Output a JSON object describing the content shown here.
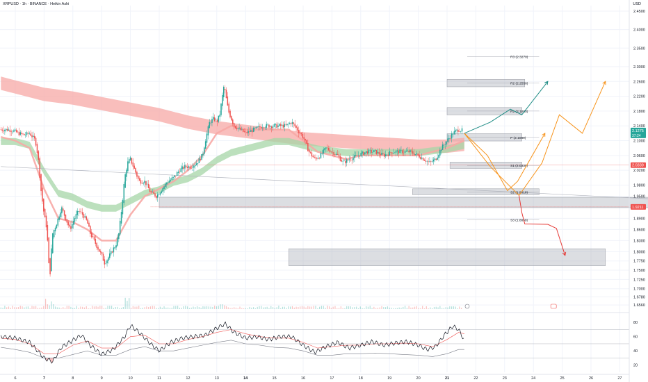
{
  "header": {
    "title": "XRPUSD · 1h · BINANCE · Heikin Ashi",
    "currency": "USD"
  },
  "colors": {
    "up": "#26a69a",
    "down": "#ef5350",
    "ribbon_red": "#f7a8a5",
    "ribbon_green": "#a5d6a7",
    "zone": "#b2b5be",
    "rsi_line": "#131722",
    "rsi_ma": "#ef5350",
    "rsi_alt": "#787b86",
    "path_teal": "#1e8c85",
    "path_orange": "#f7931a",
    "path_red": "#e53935"
  },
  "chart_data": [
    {
      "type": "line",
      "title": "XRPUSD · 1h · BINANCE · Heikin Ashi",
      "candle_style": "heikin-ashi",
      "y_axis_label": "USD",
      "y_ticks": [
        "2.4500",
        "2.4000",
        "2.3500",
        "2.3000",
        "2.2600",
        "2.2200",
        "2.1800",
        "2.1400",
        "2.1000",
        "2.0600",
        "2.0200",
        "1.9800",
        "1.9500",
        "1.8900",
        "1.8600",
        "1.8300",
        "1.8000",
        "1.7750",
        "1.7500",
        "1.7250",
        "1.7000",
        "1.6780",
        "1.6560"
      ],
      "x_ticks": [
        "6",
        "7",
        "8",
        "9",
        "10",
        "11",
        "12",
        "13",
        "14",
        "15",
        "16",
        "17",
        "18",
        "19",
        "20",
        "21",
        "22",
        "23",
        "24",
        "25",
        "26",
        "27"
      ],
      "price_labels": {
        "last": "2.1275",
        "sub_last": "37:24",
        "line_2": "2.0339",
        "line_3": "1.9211"
      },
      "pivots": [
        {
          "label": "R3 (2.3270)",
          "value": 2.327
        },
        {
          "label": "R2 (2.2556)",
          "value": 2.2556
        },
        {
          "label": "R1 (2.1800)",
          "value": 2.18
        },
        {
          "label": "P (2.1089)",
          "value": 2.1089
        },
        {
          "label": "S1 (2.0330)",
          "value": 2.033
        },
        {
          "label": "S2 (1.9616)",
          "value": 1.9616
        },
        {
          "label": "S3 (1.8859)",
          "value": 1.8859
        }
      ],
      "zones": [
        {
          "from": 2.2455,
          "to": 2.2655,
          "x0": 21,
          "x1": 23.7
        },
        {
          "from": 2.1695,
          "to": 2.1895,
          "x0": 21,
          "x1": 23.6
        },
        {
          "from": 2.099,
          "to": 2.119,
          "x0": 21,
          "x1": 23.6
        },
        {
          "from": 2.025,
          "to": 2.042,
          "x0": 21.1,
          "x1": 23.6
        },
        {
          "from": 1.954,
          "to": 1.97,
          "x0": 19.8,
          "x1": 24.2
        },
        {
          "from": 1.919,
          "to": 1.947,
          "x0": 11,
          "x1": 28
        },
        {
          "from": 1.762,
          "to": 1.808,
          "x0": 15.5,
          "x1": 26.5
        }
      ],
      "close_series": [
        [
          5.5,
          2.13
        ],
        [
          5.7,
          2.13
        ],
        [
          5.9,
          2.128
        ],
        [
          6.1,
          2.12
        ],
        [
          6.3,
          2.115
        ],
        [
          6.5,
          2.12
        ],
        [
          6.7,
          2.1
        ],
        [
          6.8,
          2.05
        ],
        [
          6.9,
          1.96
        ],
        [
          7.0,
          1.9
        ],
        [
          7.1,
          1.86
        ],
        [
          7.15,
          1.78
        ],
        [
          7.2,
          1.73
        ],
        [
          7.25,
          1.8
        ],
        [
          7.3,
          1.85
        ],
        [
          7.45,
          1.88
        ],
        [
          7.6,
          1.92
        ],
        [
          7.75,
          1.89
        ],
        [
          7.9,
          1.86
        ],
        [
          8.05,
          1.89
        ],
        [
          8.2,
          1.91
        ],
        [
          8.35,
          1.9
        ],
        [
          8.5,
          1.88
        ],
        [
          8.6,
          1.85
        ],
        [
          8.8,
          1.82
        ],
        [
          9.0,
          1.79
        ],
        [
          9.1,
          1.77
        ],
        [
          9.2,
          1.78
        ],
        [
          9.35,
          1.8
        ],
        [
          9.5,
          1.82
        ],
        [
          9.6,
          1.85
        ],
        [
          9.7,
          1.92
        ],
        [
          9.8,
          2.0
        ],
        [
          9.9,
          2.04
        ],
        [
          10.0,
          2.05
        ],
        [
          10.15,
          2.02
        ],
        [
          10.3,
          1.99
        ],
        [
          10.5,
          1.99
        ],
        [
          10.7,
          1.96
        ],
        [
          10.9,
          1.95
        ],
        [
          11.1,
          1.97
        ],
        [
          11.3,
          1.99
        ],
        [
          11.5,
          2.0
        ],
        [
          11.7,
          2.02
        ],
        [
          11.9,
          2.03
        ],
        [
          12.1,
          2.03
        ],
        [
          12.3,
          2.04
        ],
        [
          12.5,
          2.06
        ],
        [
          12.6,
          2.1
        ],
        [
          12.75,
          2.15
        ],
        [
          12.9,
          2.16
        ],
        [
          13.0,
          2.15
        ],
        [
          13.1,
          2.17
        ],
        [
          13.25,
          2.25
        ],
        [
          13.4,
          2.18
        ],
        [
          13.6,
          2.14
        ],
        [
          13.8,
          2.13
        ],
        [
          14.0,
          2.12
        ],
        [
          14.3,
          2.13
        ],
        [
          14.6,
          2.14
        ],
        [
          14.9,
          2.14
        ],
        [
          15.2,
          2.14
        ],
        [
          15.4,
          2.14
        ],
        [
          15.6,
          2.15
        ],
        [
          15.8,
          2.13
        ],
        [
          16.0,
          2.11
        ],
        [
          16.2,
          2.07
        ],
        [
          16.4,
          2.05
        ],
        [
          16.6,
          2.06
        ],
        [
          16.8,
          2.08
        ],
        [
          17.0,
          2.07
        ],
        [
          17.2,
          2.06
        ],
        [
          17.4,
          2.04
        ],
        [
          17.6,
          2.05
        ],
        [
          17.9,
          2.06
        ],
        [
          18.2,
          2.07
        ],
        [
          18.5,
          2.07
        ],
        [
          18.8,
          2.06
        ],
        [
          19.1,
          2.07
        ],
        [
          19.4,
          2.07
        ],
        [
          19.7,
          2.07
        ],
        [
          20.0,
          2.06
        ],
        [
          20.2,
          2.05
        ],
        [
          20.4,
          2.04
        ],
        [
          20.6,
          2.05
        ],
        [
          20.8,
          2.08
        ],
        [
          21.0,
          2.1
        ],
        [
          21.2,
          2.12
        ],
        [
          21.4,
          2.13
        ],
        [
          21.55,
          2.127
        ]
      ],
      "ribbon_center": [
        [
          5.5,
          2.255
        ],
        [
          6,
          2.245
        ],
        [
          7,
          2.225
        ],
        [
          8,
          2.215
        ],
        [
          9,
          2.2
        ],
        [
          10,
          2.185
        ],
        [
          11,
          2.17
        ],
        [
          12,
          2.15
        ],
        [
          13,
          2.135
        ],
        [
          14,
          2.125
        ],
        [
          15,
          2.115
        ],
        [
          16,
          2.105
        ],
        [
          17,
          2.1
        ],
        [
          18,
          2.095
        ],
        [
          19,
          2.09
        ],
        [
          20,
          2.085
        ],
        [
          21,
          2.085
        ],
        [
          21.6,
          2.09
        ]
      ],
      "ma_green": [
        [
          5.5,
          2.1
        ],
        [
          6,
          2.1
        ],
        [
          6.5,
          2.09
        ],
        [
          7,
          2.02
        ],
        [
          7.5,
          1.96
        ],
        [
          8,
          1.95
        ],
        [
          8.5,
          1.93
        ],
        [
          9,
          1.92
        ],
        [
          9.5,
          1.92
        ],
        [
          10,
          1.94
        ],
        [
          10.5,
          1.96
        ],
        [
          11,
          1.97
        ],
        [
          11.5,
          1.99
        ],
        [
          12,
          2.0
        ],
        [
          12.5,
          2.02
        ],
        [
          13,
          2.05
        ],
        [
          13.5,
          2.07
        ],
        [
          14,
          2.08
        ],
        [
          14.5,
          2.09
        ],
        [
          15,
          2.1
        ],
        [
          15.5,
          2.1
        ],
        [
          16,
          2.09
        ],
        [
          16.5,
          2.08
        ],
        [
          17,
          2.075
        ],
        [
          17.5,
          2.07
        ],
        [
          18,
          2.07
        ],
        [
          19,
          2.07
        ],
        [
          20,
          2.07
        ],
        [
          21,
          2.08
        ],
        [
          21.6,
          2.09
        ]
      ],
      "ma_red_fast": [
        [
          5.5,
          2.11
        ],
        [
          6,
          2.1
        ],
        [
          6.5,
          2.08
        ],
        [
          7,
          1.97
        ],
        [
          7.5,
          1.89
        ],
        [
          8,
          1.88
        ],
        [
          8.5,
          1.86
        ],
        [
          9,
          1.83
        ],
        [
          9.5,
          1.83
        ],
        [
          10,
          1.9
        ],
        [
          10.5,
          1.95
        ],
        [
          11,
          1.97
        ],
        [
          11.5,
          1.99
        ],
        [
          12,
          2.02
        ],
        [
          12.5,
          2.06
        ],
        [
          13,
          2.12
        ],
        [
          13.5,
          2.14
        ],
        [
          14,
          2.13
        ],
        [
          15,
          2.13
        ],
        [
          15.5,
          2.13
        ],
        [
          16,
          2.1
        ],
        [
          16.5,
          2.07
        ],
        [
          17,
          2.06
        ],
        [
          17.5,
          2.05
        ],
        [
          18,
          2.06
        ],
        [
          19,
          2.06
        ],
        [
          20,
          2.06
        ],
        [
          21,
          2.08
        ],
        [
          21.6,
          2.1
        ]
      ],
      "trendline": [
        [
          5.5,
          2.03
        ],
        [
          28,
          1.943
        ]
      ],
      "projections": {
        "teal": [
          [
            21.6,
            2.12
          ],
          [
            22.5,
            2.15
          ],
          [
            23.2,
            2.185
          ],
          [
            23.6,
            2.17
          ],
          [
            24.5,
            2.26
          ]
        ],
        "orange_up": [
          [
            21.6,
            2.12
          ],
          [
            22.4,
            2.06
          ],
          [
            23.1,
            1.965
          ],
          [
            23.45,
            1.99
          ],
          [
            24.4,
            2.12
          ]
        ],
        "orange_low": [
          [
            21.6,
            2.12
          ],
          [
            22.5,
            2.03
          ],
          [
            23.5,
            1.952
          ],
          [
            24.3,
            2.04
          ],
          [
            24.9,
            2.17
          ],
          [
            25.7,
            2.12
          ],
          [
            26.5,
            2.26
          ]
        ],
        "red": [
          [
            23.5,
            1.952
          ],
          [
            23.6,
            1.905
          ],
          [
            23.7,
            1.875
          ],
          [
            24.5,
            1.874
          ],
          [
            24.8,
            1.863
          ],
          [
            25.1,
            1.79
          ]
        ]
      },
      "x_range": [
        5.5,
        28
      ],
      "y_range": [
        1.645,
        2.465
      ],
      "grid": true
    },
    {
      "type": "line",
      "indicator": "RSI",
      "y_ticks": [
        "80",
        "60",
        "40",
        "20"
      ],
      "y_range": [
        10,
        88
      ],
      "levels": [
        70,
        50,
        30
      ],
      "rsi": [
        [
          5.5,
          60
        ],
        [
          6,
          58
        ],
        [
          6.5,
          52
        ],
        [
          7,
          30
        ],
        [
          7.3,
          25
        ],
        [
          7.6,
          45
        ],
        [
          8,
          55
        ],
        [
          8.3,
          62
        ],
        [
          8.6,
          48
        ],
        [
          9,
          35
        ],
        [
          9.4,
          42
        ],
        [
          9.8,
          60
        ],
        [
          10,
          76
        ],
        [
          10.3,
          66
        ],
        [
          10.7,
          50
        ],
        [
          11,
          40
        ],
        [
          11.4,
          52
        ],
        [
          11.8,
          58
        ],
        [
          12.2,
          60
        ],
        [
          12.6,
          62
        ],
        [
          13,
          72
        ],
        [
          13.3,
          78
        ],
        [
          13.6,
          66
        ],
        [
          14,
          58
        ],
        [
          14.4,
          60
        ],
        [
          14.8,
          56
        ],
        [
          15.2,
          60
        ],
        [
          15.6,
          60
        ],
        [
          16,
          48
        ],
        [
          16.4,
          38
        ],
        [
          16.8,
          46
        ],
        [
          17.2,
          52
        ],
        [
          17.6,
          44
        ],
        [
          18,
          48
        ],
        [
          18.4,
          53
        ],
        [
          18.8,
          48
        ],
        [
          19.2,
          51
        ],
        [
          19.6,
          53
        ],
        [
          20,
          48
        ],
        [
          20.3,
          42
        ],
        [
          20.6,
          46
        ],
        [
          20.9,
          62
        ],
        [
          21.2,
          75
        ],
        [
          21.4,
          70
        ],
        [
          21.6,
          55
        ]
      ],
      "rsi_ma": [
        [
          5.5,
          58
        ],
        [
          6,
          56
        ],
        [
          6.5,
          50
        ],
        [
          7,
          36
        ],
        [
          7.5,
          36
        ],
        [
          8,
          48
        ],
        [
          8.5,
          54
        ],
        [
          9,
          44
        ],
        [
          9.5,
          44
        ],
        [
          10,
          60
        ],
        [
          10.5,
          62
        ],
        [
          11,
          50
        ],
        [
          11.5,
          50
        ],
        [
          12,
          56
        ],
        [
          12.5,
          60
        ],
        [
          13,
          66
        ],
        [
          13.5,
          70
        ],
        [
          14,
          64
        ],
        [
          14.5,
          60
        ],
        [
          15,
          58
        ],
        [
          15.5,
          58
        ],
        [
          16,
          52
        ],
        [
          16.5,
          44
        ],
        [
          17,
          46
        ],
        [
          17.5,
          48
        ],
        [
          18,
          48
        ],
        [
          18.5,
          50
        ],
        [
          19,
          50
        ],
        [
          19.5,
          51
        ],
        [
          20,
          50
        ],
        [
          20.5,
          46
        ],
        [
          21,
          56
        ],
        [
          21.4,
          66
        ],
        [
          21.6,
          64
        ]
      ],
      "rsi_slow": [
        [
          5.5,
          45
        ],
        [
          6,
          42
        ],
        [
          6.5,
          38
        ],
        [
          7,
          30
        ],
        [
          7.5,
          30
        ],
        [
          8,
          35
        ],
        [
          8.5,
          40
        ],
        [
          9,
          34
        ],
        [
          9.5,
          34
        ],
        [
          10,
          42
        ],
        [
          10.5,
          46
        ],
        [
          11,
          40
        ],
        [
          11.5,
          40
        ],
        [
          12,
          44
        ],
        [
          12.5,
          48
        ],
        [
          13,
          52
        ],
        [
          13.5,
          55
        ],
        [
          14,
          50
        ],
        [
          14.5,
          48
        ],
        [
          15,
          45
        ],
        [
          15.5,
          44
        ],
        [
          16,
          40
        ],
        [
          16.5,
          34
        ],
        [
          17,
          34
        ],
        [
          17.5,
          36
        ],
        [
          18,
          36
        ],
        [
          18.5,
          37
        ],
        [
          19,
          36
        ],
        [
          19.5,
          35
        ],
        [
          20,
          34
        ],
        [
          20.5,
          32
        ],
        [
          21,
          36
        ],
        [
          21.4,
          42
        ],
        [
          21.6,
          42
        ]
      ]
    }
  ]
}
